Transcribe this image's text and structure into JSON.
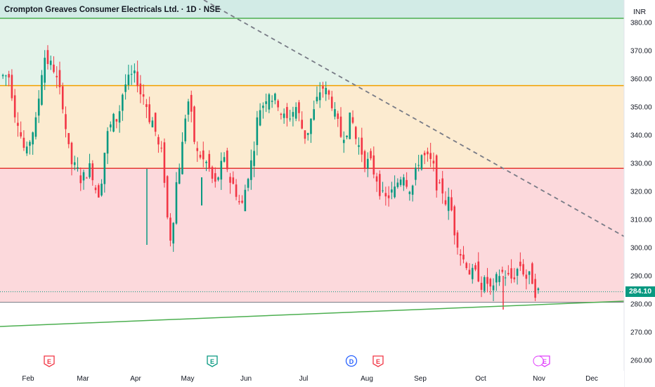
{
  "header": {
    "title": "Crompton Greaves Consumer Electricals Ltd. · 1D · NSE"
  },
  "currency": "INR",
  "last_price_label": "284.10",
  "colors": {
    "up": "#089981",
    "down": "#f23645",
    "zone_green": "#e4f3ea",
    "zone_orange": "#fcebd0",
    "zone_red": "#fcd9dc",
    "line_green": "#4caf50",
    "line_orange": "#f0a000",
    "line_red": "#e53935"
  },
  "chart_data": {
    "type": "candlestick",
    "symbol": "Crompton Greaves Consumer Electricals Ltd.",
    "interval": "1D",
    "exchange": "NSE",
    "ylim": [
      255,
      383
    ],
    "y_ticks": [
      "380.00",
      "370.00",
      "360.00",
      "350.00",
      "340.00",
      "330.00",
      "320.00",
      "310.00",
      "300.00",
      "290.00",
      "280.00",
      "270.00",
      "260.00"
    ],
    "x_ticks": [
      "Feb",
      "Mar",
      "Apr",
      "May",
      "Jun",
      "Jul",
      "Aug",
      "Sep",
      "Oct",
      "Nov",
      "Dec"
    ],
    "last_price": 284.1,
    "horizontal_levels": [
      {
        "price": 381.5,
        "color": "green"
      },
      {
        "price": 357.6,
        "color": "orange"
      },
      {
        "price": 328.2,
        "color": "red"
      },
      {
        "price": 280.6,
        "color": "gray"
      }
    ],
    "zones": [
      {
        "from": 357.6,
        "to": 381.5,
        "color": "green"
      },
      {
        "from": 328.2,
        "to": 357.6,
        "color": "orange"
      },
      {
        "from": 280.6,
        "to": 328.2,
        "color": "red"
      }
    ],
    "trendlines": [
      {
        "style": "dashed",
        "from": {
          "date": "Jan-2nd-week",
          "price": 386
        },
        "to": {
          "date": "Dec-end",
          "price": 304
        }
      },
      {
        "style": "solid",
        "from": {
          "date": "Jan-start",
          "price": 272
        },
        "to": {
          "date": "Dec-end",
          "price": 281
        }
      }
    ],
    "events": [
      {
        "label": "E",
        "month": "Feb",
        "color": "#f23645"
      },
      {
        "label": "E",
        "month": "May",
        "color": "#089981"
      },
      {
        "label": "D",
        "month": "Jul",
        "color": "#2962ff"
      },
      {
        "label": "E",
        "month": "Aug",
        "color": "#f23645"
      },
      {
        "label": "E",
        "month": "Nov",
        "color": "#e040fb"
      }
    ],
    "close_path": [
      [
        361,
        "Jan"
      ],
      [
        346,
        "Jan"
      ],
      [
        333,
        "Jan"
      ],
      [
        344,
        "Jan"
      ],
      [
        368,
        "Feb"
      ],
      [
        364,
        "Feb"
      ],
      [
        352,
        "Feb"
      ],
      [
        330,
        "Feb"
      ],
      [
        325,
        "Feb"
      ],
      [
        328,
        "Feb"
      ],
      [
        320,
        "Mar"
      ],
      [
        340,
        "Mar"
      ],
      [
        346,
        "Mar"
      ],
      [
        358,
        "Mar"
      ],
      [
        360,
        "Mar"
      ],
      [
        354,
        "Mar"
      ],
      [
        345,
        "Apr"
      ],
      [
        333,
        "Apr"
      ],
      [
        304,
        "Apr"
      ],
      [
        330,
        "Apr"
      ],
      [
        352,
        "Apr"
      ],
      [
        333,
        "Apr"
      ],
      [
        330,
        "May"
      ],
      [
        322,
        "May"
      ],
      [
        330,
        "May"
      ],
      [
        322,
        "May"
      ],
      [
        315,
        "May"
      ],
      [
        330,
        "May"
      ],
      [
        350,
        "Jun"
      ],
      [
        356,
        "Jun"
      ],
      [
        352,
        "Jun"
      ],
      [
        345,
        "Jun"
      ],
      [
        350,
        "Jun"
      ],
      [
        340,
        "Jun"
      ],
      [
        348,
        "Jul"
      ],
      [
        357,
        "Jul"
      ],
      [
        352,
        "Jul"
      ],
      [
        340,
        "Jul"
      ],
      [
        345,
        "Jul"
      ],
      [
        336,
        "Jul"
      ],
      [
        330,
        "Aug"
      ],
      [
        325,
        "Aug"
      ],
      [
        317,
        "Aug"
      ],
      [
        320,
        "Aug"
      ],
      [
        327,
        "Aug"
      ],
      [
        322,
        "Aug"
      ],
      [
        333,
        "Sep"
      ],
      [
        330,
        "Sep"
      ],
      [
        320,
        "Sep"
      ],
      [
        316,
        "Sep"
      ],
      [
        303,
        "Sep"
      ],
      [
        295,
        "Sep"
      ],
      [
        290,
        "Oct"
      ],
      [
        287,
        "Oct"
      ],
      [
        284,
        "Oct"
      ],
      [
        291,
        "Oct"
      ],
      [
        289,
        "Oct"
      ],
      [
        294,
        "Oct"
      ],
      [
        289,
        "Nov"
      ],
      [
        284,
        "Nov"
      ]
    ]
  }
}
